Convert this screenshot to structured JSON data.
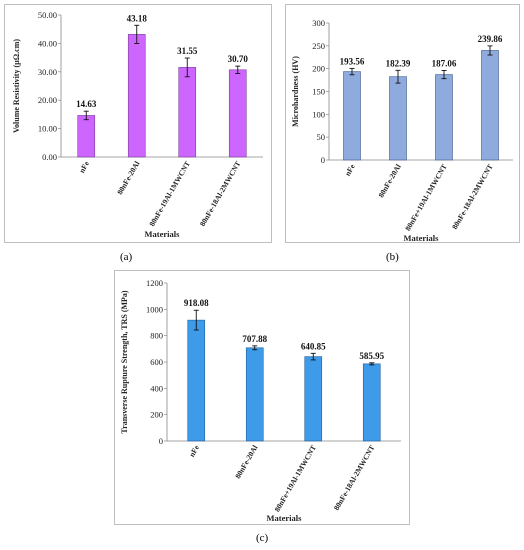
{
  "panels": {
    "a": "(a)",
    "b": "(b)",
    "c": "(c)"
  },
  "chart_data": [
    {
      "id": "a",
      "type": "bar",
      "categories": [
        "nFe",
        "80nFe-20Al",
        "80nFe-19Al-1MWCNT",
        "80nFe-18Al-2MWCNT"
      ],
      "values": [
        14.63,
        43.18,
        31.55,
        30.7
      ],
      "errors": [
        1.5,
        3.2,
        3.3,
        1.3
      ],
      "labels": [
        "14.63",
        "43.18",
        "31.55",
        "30.70"
      ],
      "ticks": [
        "0.00",
        "10.00",
        "20.00",
        "30.00",
        "40.00",
        "50.00"
      ],
      "xlabel": "Materials",
      "ylabel": "Volume Resistivity (µΩ.cm)",
      "ylim": [
        0,
        50
      ],
      "grid": false,
      "colors": {
        "fill": "#cc66ff",
        "stroke": "#7a3d99"
      }
    },
    {
      "id": "b",
      "type": "bar",
      "categories": [
        "nFe",
        "80nFe-20Al",
        "80nFe+19Al-1MWCNT",
        "80nFe-18Al-2MWCNT"
      ],
      "values": [
        193.56,
        182.39,
        187.06,
        239.86
      ],
      "errors": [
        7,
        14,
        9,
        10
      ],
      "labels": [
        "193.56",
        "182.39",
        "187.06",
        "239.86"
      ],
      "ticks": [
        "0",
        "50",
        "100",
        "150",
        "200",
        "250",
        "300"
      ],
      "xlabel": "Materials",
      "ylabel": "Microhardness (HV)",
      "ylim": [
        0,
        300
      ],
      "grid": false,
      "colors": {
        "fill": "#8faadc",
        "stroke": "#3d5a8a"
      }
    },
    {
      "id": "c",
      "type": "bar",
      "categories": [
        "nFe",
        "80nFe-20Al",
        "80nFe+19Al-1MWCNT",
        "80nFe-18Al-2MWCNT"
      ],
      "values": [
        918.08,
        707.88,
        640.85,
        585.95
      ],
      "errors": [
        75,
        15,
        25,
        8
      ],
      "labels": [
        "918.08",
        "707.88",
        "640.85",
        "585.95"
      ],
      "ticks": [
        "0",
        "200",
        "400",
        "600",
        "800",
        "1000",
        "1200"
      ],
      "xlabel": "Materials",
      "ylabel": "Transverse Rupture Strength, TRS (MPa)",
      "ylim": [
        0,
        1200
      ],
      "grid": false,
      "colors": {
        "fill": "#3d9be9",
        "stroke": "#1f5e99"
      }
    }
  ]
}
